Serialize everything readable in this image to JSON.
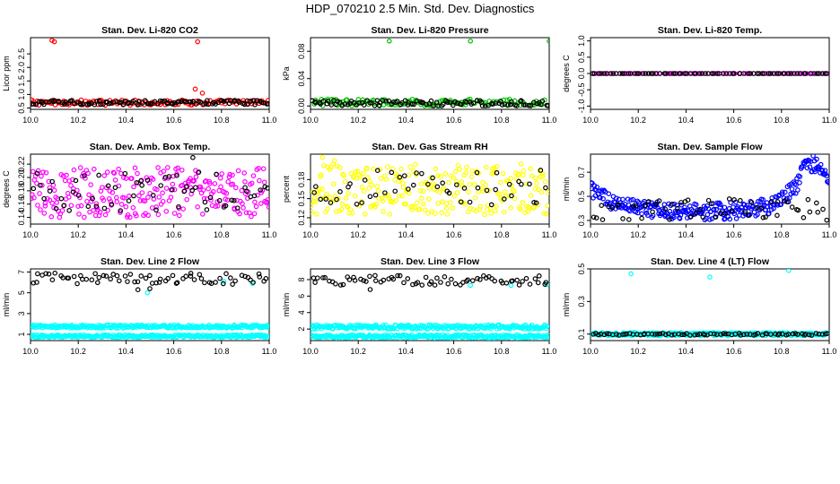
{
  "page_title": "HDP_070210  2.5 Min. Std. Dev. Diagnostics",
  "chart_data": [
    {
      "type": "scatter",
      "title": "Stan. Dev. Li-820 CO2",
      "ylabel": "Licor ppm",
      "xlim": [
        10.0,
        11.0
      ],
      "xticks": [
        "10.0",
        "10.2",
        "10.4",
        "10.6",
        "10.8",
        "11.0"
      ],
      "ylim": [
        0.45,
        3.1
      ],
      "yticks": [
        "0.5",
        "1.0",
        "1.5",
        "2.0",
        "2.5"
      ],
      "colors": {
        "primary": "#ff0000",
        "secondary": "#000000"
      },
      "series": [
        {
          "color": "#ff0000",
          "band": [
            0.6,
            0.8
          ],
          "count": 120,
          "outliers": [
            [
              10.09,
              3.0
            ],
            [
              10.1,
              2.95
            ],
            [
              10.7,
              2.95
            ],
            [
              10.69,
              1.2
            ],
            [
              10.72,
              1.05
            ]
          ]
        },
        {
          "color": "#000000",
          "band": [
            0.62,
            0.78
          ],
          "count": 110,
          "outliers": []
        }
      ]
    },
    {
      "type": "scatter",
      "title": "Stan. Dev. Li-820 Pressure",
      "ylabel": "kPa",
      "xlim": [
        10.0,
        11.0
      ],
      "xticks": [
        "10.0",
        "10.2",
        "10.4",
        "10.6",
        "10.8",
        "11.0"
      ],
      "ylim": [
        -0.005,
        0.1
      ],
      "yticks": [
        "0.00",
        "0.04",
        "0.08"
      ],
      "colors": {
        "primary": "#00c000",
        "secondary": "#000000"
      },
      "series": [
        {
          "color": "#00c000",
          "band": [
            0.0,
            0.01
          ],
          "count": 120,
          "outliers": [
            [
              10.33,
              0.095
            ],
            [
              10.67,
              0.095
            ],
            [
              11.0,
              0.095
            ]
          ]
        },
        {
          "color": "#000000",
          "band": [
            0.0,
            0.008
          ],
          "count": 100,
          "outliers": []
        }
      ]
    },
    {
      "type": "scatter",
      "title": "Stan. Dev. Li-820 Temp.",
      "ylabel": "degrees C",
      "xlim": [
        10.0,
        11.0
      ],
      "xticks": [
        "10.0",
        "10.2",
        "10.4",
        "10.6",
        "10.8",
        "11.0"
      ],
      "ylim": [
        -1.1,
        1.1
      ],
      "yticks": [
        "-1.0",
        "-0.5",
        "0.0",
        "0.5",
        "1.0"
      ],
      "colors": {
        "primary": "#ff00ff",
        "secondary": "#000000"
      },
      "series": [
        {
          "color": "#ff00ff",
          "band": [
            0.0,
            0.0
          ],
          "count": 80,
          "outliers": []
        },
        {
          "color": "#000000",
          "band": [
            0.0,
            0.0
          ],
          "count": 80,
          "outliers": []
        }
      ]
    },
    {
      "type": "scatter",
      "title": "Stan. Dev. Amb. Box Temp.",
      "ylabel": "degrees C",
      "xlim": [
        10.0,
        11.0
      ],
      "xticks": [
        "10.0",
        "10.2",
        "10.4",
        "10.6",
        "10.8",
        "11.0"
      ],
      "ylim": [
        0.13,
        0.235
      ],
      "yticks": [
        "0.14",
        "0.16",
        "0.18",
        "0.20",
        "0.22"
      ],
      "colors": {
        "primary": "#ff00ff",
        "secondary": "#000000"
      },
      "series": [
        {
          "color": "#ff00ff",
          "band": [
            0.14,
            0.215
          ],
          "count": 260,
          "outliers": []
        },
        {
          "color": "#000000",
          "band": [
            0.15,
            0.21
          ],
          "count": 60,
          "outliers": [
            [
              10.68,
              0.23
            ]
          ]
        }
      ]
    },
    {
      "type": "scatter",
      "title": "Stan. Dev. Gas Stream RH",
      "ylabel": "percent",
      "xlim": [
        10.0,
        11.0
      ],
      "xticks": [
        "10.0",
        "10.2",
        "10.4",
        "10.6",
        "10.8",
        "11.0"
      ],
      "ylim": [
        0.11,
        0.22
      ],
      "yticks": [
        "0.12",
        "0.15",
        "0.18"
      ],
      "colors": {
        "primary": "#ffff00",
        "secondary": "#000000"
      },
      "series": [
        {
          "color": "#ffff00",
          "band": [
            0.125,
            0.205
          ],
          "count": 260,
          "outliers": [
            [
              10.05,
              0.215
            ],
            [
              10.1,
              0.21
            ]
          ]
        },
        {
          "color": "#000000",
          "band": [
            0.14,
            0.195
          ],
          "count": 50,
          "outliers": []
        }
      ]
    },
    {
      "type": "scatter",
      "title": "Stan. Dev. Sample Flow",
      "ylabel": "ml/min",
      "xlim": [
        10.0,
        11.0
      ],
      "xticks": [
        "10.0",
        "10.2",
        "10.4",
        "10.6",
        "10.8",
        "11.0"
      ],
      "ylim": [
        0.27,
        0.85
      ],
      "yticks": [
        "0.3",
        "0.5",
        "0.7"
      ],
      "colors": {
        "primary": "#0000ff",
        "secondary": "#000000"
      },
      "series": [
        {
          "color": "#0000ff",
          "band": [
            0.33,
            0.55
          ],
          "count": 300,
          "outliers": [],
          "curve": [
            [
              10.0,
              0.55
            ],
            [
              10.1,
              0.45
            ],
            [
              10.2,
              0.4
            ],
            [
              10.4,
              0.37
            ],
            [
              10.6,
              0.38
            ],
            [
              10.75,
              0.42
            ],
            [
              10.85,
              0.55
            ],
            [
              10.9,
              0.75
            ],
            [
              10.95,
              0.78
            ],
            [
              11.0,
              0.6
            ]
          ]
        },
        {
          "color": "#000000",
          "band": [
            0.3,
            0.48
          ],
          "count": 60,
          "outliers": []
        }
      ]
    },
    {
      "type": "scatter",
      "title": "Stan. Dev. Line 2 Flow",
      "ylabel": "ml/min",
      "xlim": [
        10.0,
        11.0
      ],
      "xticks": [
        "10.0",
        "10.2",
        "10.4",
        "10.6",
        "10.8",
        "11.0"
      ],
      "ylim": [
        0.4,
        7.3
      ],
      "yticks": [
        "1",
        "3",
        "5",
        "7"
      ],
      "colors": {
        "primary": "#00ffff",
        "secondary": "#000000"
      },
      "series": [
        {
          "color": "#00ffff",
          "band": [
            1.6,
            1.9
          ],
          "count": 260,
          "outliers": [
            [
              10.49,
              5.0
            ],
            [
              10.93,
              5.9
            ],
            [
              10.81,
              6.1
            ]
          ]
        },
        {
          "color": "#00ffff",
          "band": [
            0.7,
            0.95
          ],
          "count": 260,
          "outliers": []
        },
        {
          "color": "#000000",
          "band": [
            5.8,
            6.9
          ],
          "count": 70,
          "outliers": [
            [
              10.45,
              5.3
            ],
            [
              10.5,
              5.4
            ]
          ]
        }
      ]
    },
    {
      "type": "scatter",
      "title": "Stan. Dev. Line 3 Flow",
      "ylabel": "ml/min",
      "xlim": [
        10.0,
        11.0
      ],
      "xticks": [
        "10.0",
        "10.2",
        "10.4",
        "10.6",
        "10.8",
        "11.0"
      ],
      "ylim": [
        0.6,
        9.3
      ],
      "yticks": [
        "2",
        "4",
        "6",
        "8"
      ],
      "colors": {
        "primary": "#00ffff",
        "secondary": "#000000"
      },
      "series": [
        {
          "color": "#00ffff",
          "band": [
            2.0,
            2.5
          ],
          "count": 260,
          "outliers": [
            [
              10.67,
              7.3
            ],
            [
              10.84,
              7.3
            ],
            [
              10.99,
              7.4
            ]
          ]
        },
        {
          "color": "#000000",
          "band": [
            7.3,
            8.5
          ],
          "count": 70,
          "outliers": [
            [
              10.25,
              6.8
            ]
          ]
        },
        {
          "color": "#00ffff",
          "band": [
            0.9,
            1.3
          ],
          "count": 260,
          "outliers": []
        }
      ]
    },
    {
      "type": "scatter",
      "title": "Stan. Dev. Line 4 (LT) Flow",
      "ylabel": "ml/min",
      "xlim": [
        10.0,
        11.0
      ],
      "xticks": [
        "10.0",
        "10.2",
        "10.4",
        "10.6",
        "10.8",
        "11.0"
      ],
      "ylim": [
        0.06,
        0.5
      ],
      "yticks": [
        "0.1",
        "0.3",
        "0.5"
      ],
      "colors": {
        "primary": "#00ffff",
        "secondary": "#000000"
      },
      "series": [
        {
          "color": "#00ffff",
          "band": [
            0.09,
            0.11
          ],
          "count": 260,
          "outliers": [
            [
              10.17,
              0.47
            ],
            [
              10.5,
              0.45
            ],
            [
              10.83,
              0.49
            ]
          ]
        },
        {
          "color": "#000000",
          "band": [
            0.092,
            0.105
          ],
          "count": 80,
          "outliers": []
        }
      ]
    }
  ]
}
